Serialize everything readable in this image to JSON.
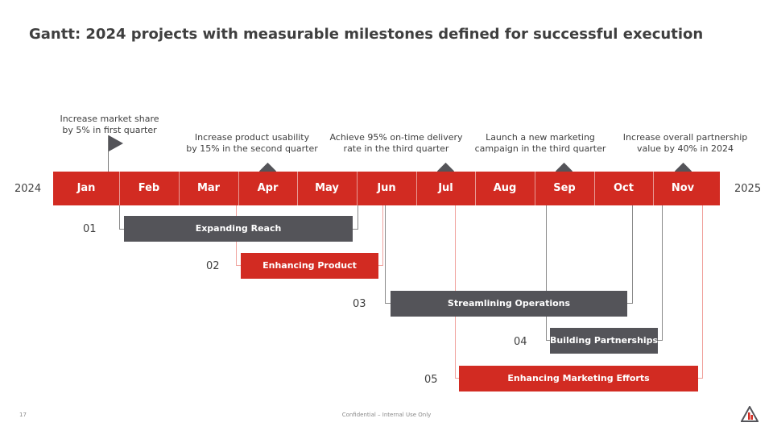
{
  "title": "Gantt: 2024 projects with measurable milestones defined for successful execution",
  "timeline": {
    "start_year": "2024",
    "end_year": "2025",
    "months": [
      "Jan",
      "Feb",
      "Mar",
      "Apr",
      "May",
      "Jun",
      "Jul",
      "Aug",
      "Sep",
      "Oct",
      "Nov"
    ]
  },
  "milestones": [
    {
      "line1": "Increase market share",
      "line2": "by 5% in first quarter",
      "marker": "flag-icon"
    },
    {
      "line1": "Increase product usability",
      "line2": "by 15% in the second quarter",
      "marker": "diamond-icon"
    },
    {
      "line1": "Achieve 95% on-time delivery",
      "line2": "rate in the third quarter",
      "marker": "diamond-icon"
    },
    {
      "line1": "Launch a new marketing",
      "line2": "campaign in the third quarter",
      "marker": "diamond-icon"
    },
    {
      "line1": "Increase overall partnership",
      "line2": "value by 40% in 2024",
      "marker": "diamond-icon"
    }
  ],
  "projects": [
    {
      "number": "01",
      "label": "Expanding Reach"
    },
    {
      "number": "02",
      "label": "Enhancing Product"
    },
    {
      "number": "03",
      "label": "Streamlining Operations"
    },
    {
      "number": "04",
      "label": "Building Partnerships"
    },
    {
      "number": "05",
      "label": "Enhancing Marketing Efforts"
    }
  ],
  "colors": {
    "accent_red": "#d22b22",
    "dark_gray": "#545459"
  },
  "footer": {
    "page_number": "17",
    "confidentiality": "Confidential – Internal Use Only",
    "logo": "company-logo-icon"
  }
}
